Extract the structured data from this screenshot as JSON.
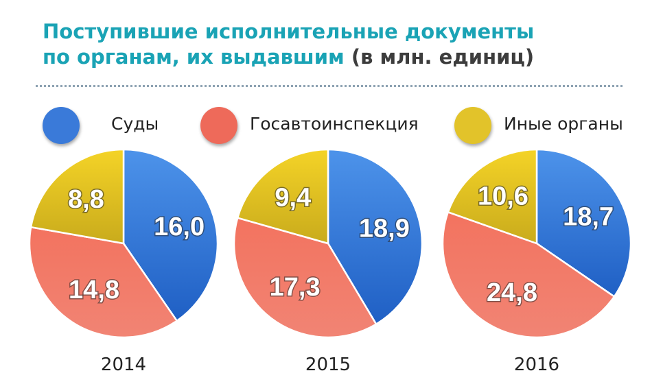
{
  "title": {
    "line1": "Поступившие исполнительные документы",
    "line2": "по органам, их выдавшим",
    "unit": "(в млн. единиц)"
  },
  "legend": [
    {
      "label": "Суды",
      "color": "#3a7ad9"
    },
    {
      "label": "Госавтоинспекция",
      "color": "#ee6a5a"
    },
    {
      "label": "Иные органы",
      "color": "#e2c32a"
    }
  ],
  "chart_data": [
    {
      "type": "pie",
      "year": "2014",
      "slices": [
        {
          "name": "Суды",
          "value": 16.0,
          "label": "16,0"
        },
        {
          "name": "Госавтоинспекция",
          "value": 14.8,
          "label": "14,8"
        },
        {
          "name": "Иные органы",
          "value": 8.8,
          "label": "8,8"
        }
      ]
    },
    {
      "type": "pie",
      "year": "2015",
      "slices": [
        {
          "name": "Суды",
          "value": 18.9,
          "label": "18,9"
        },
        {
          "name": "Госавтоинспекция",
          "value": 17.3,
          "label": "17,3"
        },
        {
          "name": "Иные органы",
          "value": 9.4,
          "label": "9,4"
        }
      ]
    },
    {
      "type": "pie",
      "year": "2016",
      "slices": [
        {
          "name": "Суды",
          "value": 18.7,
          "label": "18,7"
        },
        {
          "name": "Госавтоинспекция",
          "value": 24.8,
          "label": "24,8"
        },
        {
          "name": "Иные органы",
          "value": 10.6,
          "label": "10,6"
        }
      ]
    }
  ]
}
